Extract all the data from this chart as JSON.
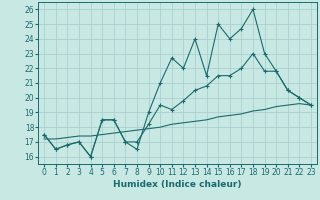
{
  "xlabel": "Humidex (Indice chaleur)",
  "xlim": [
    -0.5,
    23.5
  ],
  "ylim": [
    15.5,
    26.5
  ],
  "yticks": [
    16,
    17,
    18,
    19,
    20,
    21,
    22,
    23,
    24,
    25,
    26
  ],
  "xticks": [
    0,
    1,
    2,
    3,
    4,
    5,
    6,
    7,
    8,
    9,
    10,
    11,
    12,
    13,
    14,
    15,
    16,
    17,
    18,
    19,
    20,
    21,
    22,
    23
  ],
  "bg_color": "#c8e8e4",
  "grid_color": "#a8cccc",
  "line_color": "#1a6b6b",
  "line1_y": [
    17.5,
    16.5,
    16.8,
    17.0,
    16.0,
    18.5,
    18.5,
    17.0,
    16.5,
    19.0,
    21.0,
    22.7,
    22.0,
    24.0,
    21.5,
    25.0,
    24.0,
    24.7,
    26.0,
    23.0,
    21.8,
    20.5,
    20.0,
    19.5
  ],
  "line2_y": [
    17.5,
    16.5,
    16.8,
    17.0,
    16.0,
    18.5,
    18.5,
    17.0,
    17.0,
    18.2,
    19.5,
    19.2,
    19.8,
    20.5,
    20.8,
    21.5,
    21.5,
    22.0,
    23.0,
    21.8,
    21.8,
    20.5,
    20.0,
    19.5
  ],
  "line3_y": [
    17.2,
    17.2,
    17.3,
    17.4,
    17.4,
    17.5,
    17.6,
    17.7,
    17.8,
    17.9,
    18.0,
    18.2,
    18.3,
    18.4,
    18.5,
    18.7,
    18.8,
    18.9,
    19.1,
    19.2,
    19.4,
    19.5,
    19.6,
    19.5
  ]
}
